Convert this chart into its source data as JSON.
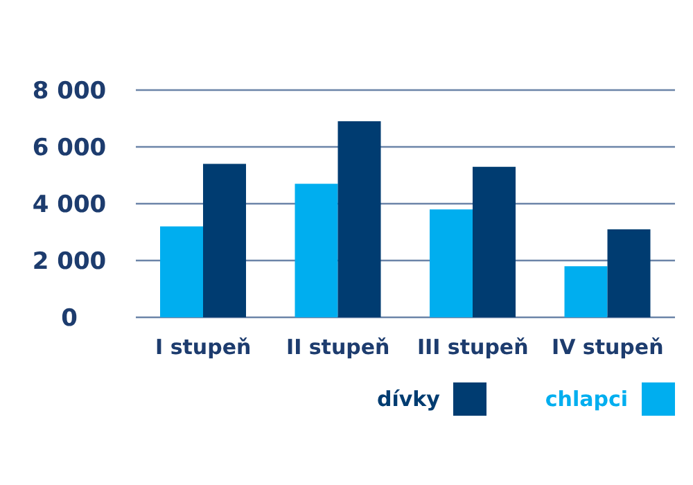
{
  "chart_data": {
    "type": "bar",
    "categories": [
      "I stupeň",
      "II stupeň",
      "III stupeň",
      "IV stupeň"
    ],
    "series": [
      {
        "name": "chlapci",
        "color": "#00aeef",
        "values": [
          3200,
          4700,
          3800,
          1800
        ]
      },
      {
        "name": "dívky",
        "color": "#003c71",
        "values": [
          5400,
          6900,
          5300,
          3100
        ]
      }
    ],
    "ylim": [
      0,
      8000
    ],
    "yticks": [
      {
        "value": 0,
        "label": "0"
      },
      {
        "value": 2000,
        "label": "2 000"
      },
      {
        "value": 4000,
        "label": "4 000"
      },
      {
        "value": 6000,
        "label": "6 000"
      },
      {
        "value": 8000,
        "label": "8 000"
      }
    ],
    "grid": "y",
    "legend": "bottom right"
  }
}
